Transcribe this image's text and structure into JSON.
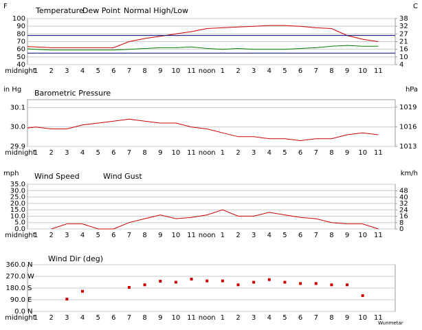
{
  "chart_data": [
    {
      "type": "line",
      "y_unit": "F",
      "y2_unit": "C",
      "categories": [
        "midnight",
        "1",
        "2",
        "3",
        "4",
        "5",
        "6",
        "7",
        "8",
        "9",
        "10",
        "11",
        "noon",
        "1",
        "2",
        "3",
        "4",
        "5",
        "6",
        "7",
        "8",
        "9",
        "10",
        "11"
      ],
      "series": [
        {
          "name": "Temperature",
          "color": "#cc0000",
          "values": [
            64,
            63,
            62,
            62,
            62,
            62,
            62,
            70,
            74,
            77,
            80,
            83,
            87,
            88,
            89,
            90,
            91,
            91,
            90,
            88,
            87,
            78,
            73,
            70
          ]
        },
        {
          "name": "Dew Point",
          "color": "#008000",
          "values": [
            61,
            60,
            59,
            59,
            59,
            59,
            59,
            60,
            61,
            62,
            62,
            63,
            61,
            60,
            61,
            60,
            60,
            60,
            61,
            62,
            64,
            65,
            64,
            64
          ]
        },
        {
          "name": "Normal High/Low",
          "color": "#000080",
          "high": 78,
          "low": 55
        }
      ],
      "ylim": [
        40,
        100
      ],
      "yticks": [
        40,
        50,
        60,
        70,
        80,
        90,
        100
      ],
      "y2lim": [
        4.44,
        37.78
      ],
      "y2ticks": [
        {
          "value": 4.44,
          "label": "4"
        },
        {
          "value": 10,
          "label": "10"
        },
        {
          "value": 15.56,
          "label": "16"
        },
        {
          "value": 21.11,
          "label": "21"
        },
        {
          "value": 26.67,
          "label": "27"
        },
        {
          "value": 32.22,
          "label": "32"
        },
        {
          "value": 37.78,
          "label": "38"
        }
      ],
      "grid": true
    },
    {
      "type": "line",
      "y_unit": "in Hg",
      "y2_unit": "hPa",
      "categories": [
        "midnight",
        "1",
        "2",
        "3",
        "4",
        "5",
        "6",
        "7",
        "8",
        "9",
        "10",
        "11",
        "noon",
        "1",
        "2",
        "3",
        "4",
        "5",
        "6",
        "7",
        "8",
        "9",
        "10",
        "11"
      ],
      "series": [
        {
          "name": "Barometric Pressure",
          "color": "#cc0000",
          "values": [
            29.99,
            30.0,
            29.99,
            29.99,
            30.01,
            30.02,
            30.03,
            30.04,
            30.03,
            30.02,
            30.02,
            30.0,
            29.99,
            29.97,
            29.95,
            29.95,
            29.94,
            29.94,
            29.93,
            29.94,
            29.94,
            29.96,
            29.97,
            29.96
          ]
        }
      ],
      "ylim": [
        29.9,
        30.14
      ],
      "yticks": [
        {
          "value": 29.9,
          "label": "29.9"
        },
        {
          "value": 30.0,
          "label": "30.0"
        },
        {
          "value": 30.1,
          "label": "30.1"
        }
      ],
      "y2lim": [
        1012.5,
        1020.6
      ],
      "y2ticks": [
        {
          "value": 1012.5,
          "label": "1013"
        },
        {
          "value": 1015.9,
          "label": "1016"
        },
        {
          "value": 1019.3,
          "label": "1019"
        }
      ],
      "grid": true
    },
    {
      "type": "line",
      "y_unit": "mph",
      "y2_unit": "km/h",
      "categories": [
        "midnight",
        "1",
        "2",
        "3",
        "4",
        "5",
        "6",
        "7",
        "8",
        "9",
        "10",
        "11",
        "noon",
        "1",
        "2",
        "3",
        "4",
        "5",
        "6",
        "7",
        "8",
        "9",
        "10",
        "11"
      ],
      "series": [
        {
          "name": "Wind Speed",
          "color": "#cc0000",
          "values": [
            null,
            null,
            0,
            4,
            4,
            0,
            0,
            5,
            8,
            11,
            8,
            9,
            11,
            15,
            10,
            10,
            13,
            11,
            9,
            8,
            5,
            4,
            4,
            0
          ]
        },
        {
          "name": "Wind Gust",
          "color": "#000080",
          "values": [
            null,
            null,
            null,
            null,
            null,
            null,
            null,
            null,
            null,
            null,
            null,
            null,
            null,
            null,
            null,
            null,
            null,
            null,
            null,
            null,
            null,
            null,
            null,
            null
          ]
        }
      ],
      "ylim": [
        0,
        35
      ],
      "yticks": [
        {
          "value": 0,
          "label": "0.0"
        },
        {
          "value": 5,
          "label": "5.0"
        },
        {
          "value": 10,
          "label": "10.0"
        },
        {
          "value": 15,
          "label": "15.0"
        },
        {
          "value": 20,
          "label": "20.0"
        },
        {
          "value": 25,
          "label": "25.0"
        },
        {
          "value": 30,
          "label": "30.0"
        },
        {
          "value": 35,
          "label": "35.0"
        }
      ],
      "y2lim": [
        0,
        56.3
      ],
      "y2ticks": [
        0,
        8,
        16,
        24,
        32,
        40,
        48
      ],
      "grid": true
    },
    {
      "type": "scatter",
      "categories": [
        "midnight",
        "1",
        "2",
        "3",
        "4",
        "5",
        "6",
        "7",
        "8",
        "9",
        "10",
        "11",
        "noon",
        "1",
        "2",
        "3",
        "4",
        "5",
        "6",
        "7",
        "8",
        "9",
        "10",
        "11"
      ],
      "series": [
        {
          "name": "Wind Dir (deg)",
          "color": "#cc0000",
          "values": [
            null,
            null,
            null,
            95,
            155,
            null,
            null,
            185,
            205,
            233,
            225,
            249,
            235,
            235,
            205,
            225,
            245,
            225,
            215,
            215,
            205,
            205,
            122,
            null
          ]
        }
      ],
      "ylim": [
        0,
        360
      ],
      "yticks": [
        {
          "value": 0,
          "label": "0.0"
        },
        {
          "value": 90,
          "label": "90.0"
        },
        {
          "value": 180,
          "label": "180.0"
        },
        {
          "value": 270,
          "label": "270.0"
        },
        {
          "value": 360,
          "label": "360.0"
        }
      ],
      "compass": [
        "N",
        "E",
        "S",
        "W",
        "N"
      ],
      "credit": "Wunmetar",
      "grid": true
    }
  ]
}
